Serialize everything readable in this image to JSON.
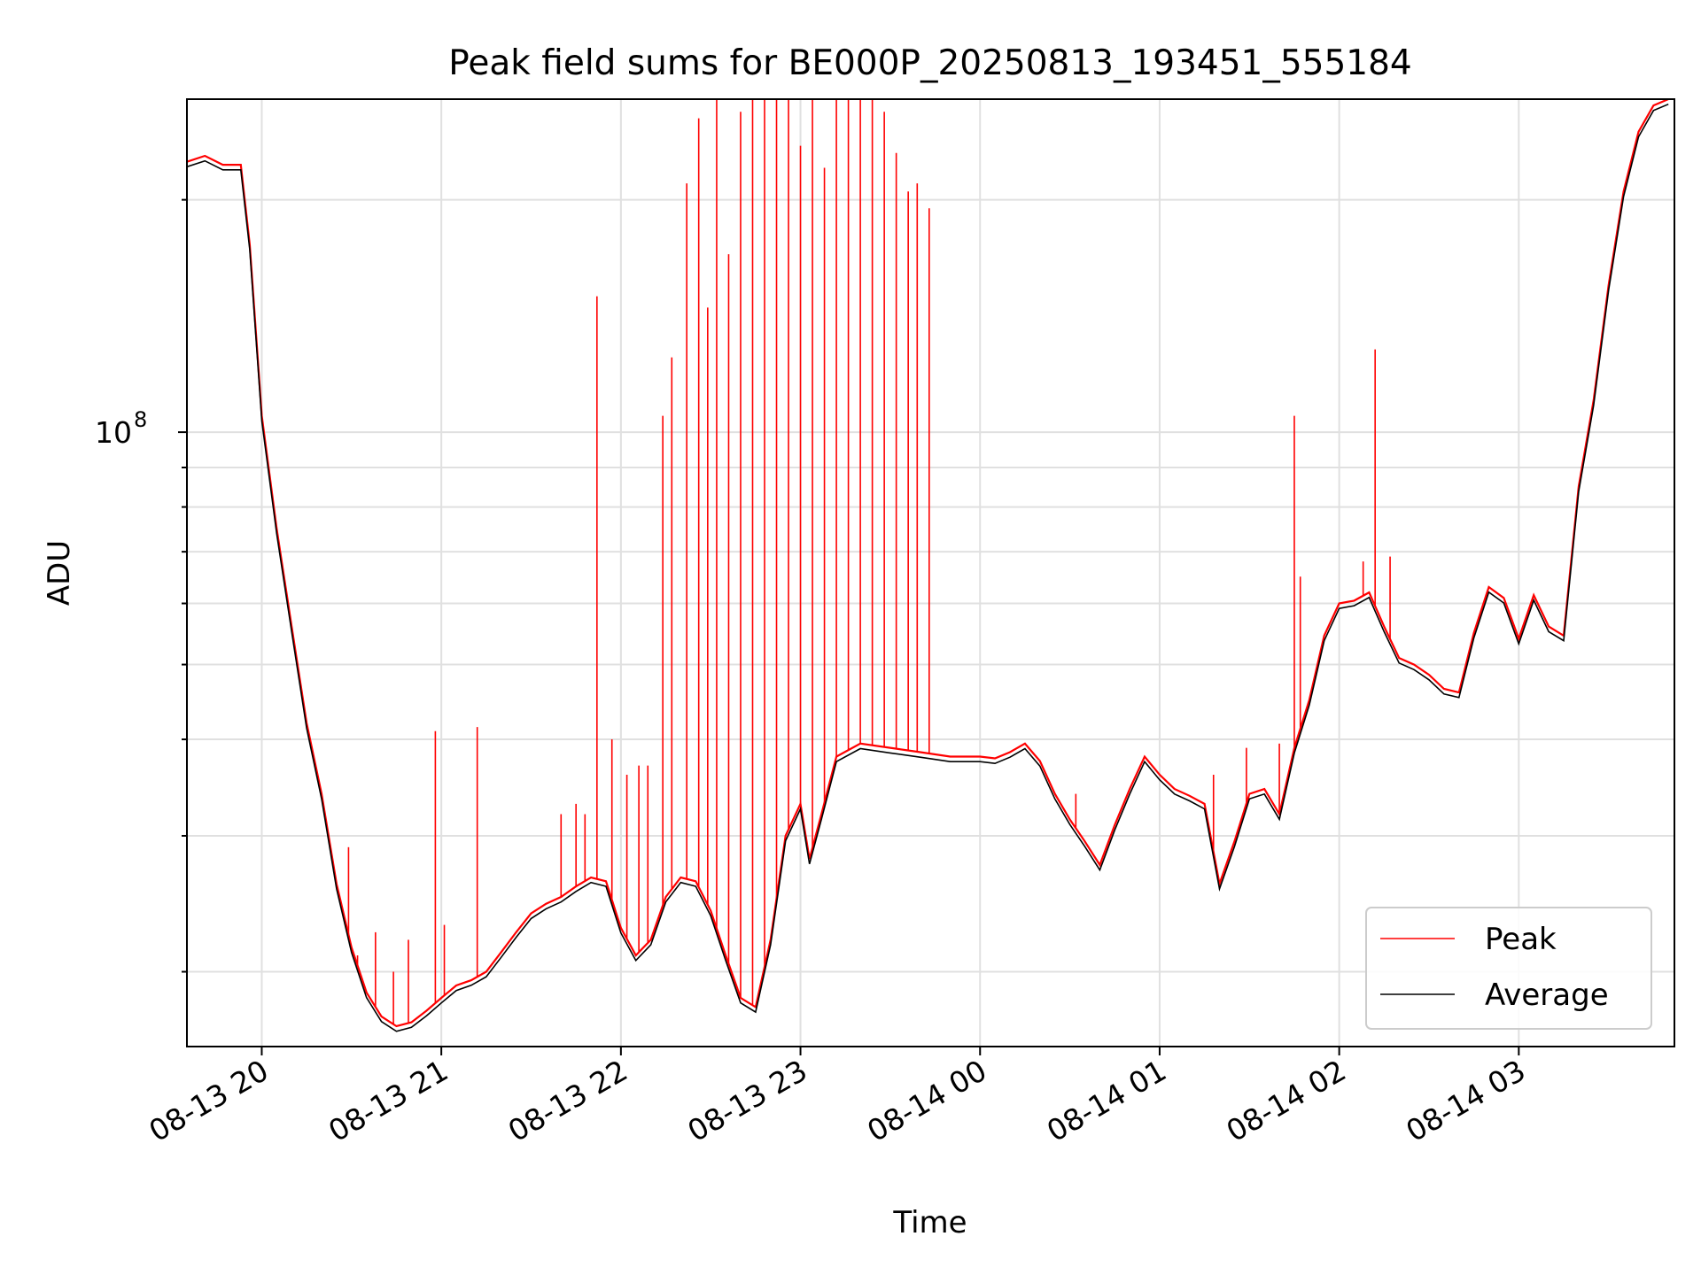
{
  "chart_data": {
    "type": "line",
    "title": "Peak field sums for BE000P_20250813_193451_555184",
    "xlabel": "Time",
    "ylabel": "ADU",
    "yscale": "log",
    "grid": true,
    "legend_placement": "lower-right",
    "x_tick_labels": [
      "08-13 20",
      "08-13 21",
      "08-13 22",
      "08-13 23",
      "08-14 00",
      "08-14 01",
      "08-14 02",
      "08-14 03"
    ],
    "x_ticks": [
      "2025-08-13 20:00",
      "2025-08-13 21:00",
      "2025-08-13 22:00",
      "2025-08-13 23:00",
      "2025-08-14 00:00",
      "2025-08-14 01:00",
      "2025-08-14 02:00",
      "2025-08-14 03:00"
    ],
    "xlim": [
      "2025-08-13 19:35",
      "2025-08-14 03:52"
    ],
    "y_tick_labels": [
      {
        "base": "10",
        "exp": "8",
        "value": 100000000
      }
    ],
    "y_minor_ticks": [
      20000000,
      30000000,
      40000000,
      50000000,
      60000000,
      70000000,
      80000000,
      90000000,
      200000000
    ],
    "ylim": [
      16000000,
      270000000
    ],
    "series": [
      {
        "name": "Peak",
        "color": "#ff0000",
        "points": [
          [
            "2025-08-13 19:35",
            224000000.0
          ],
          [
            "2025-08-13 19:41",
            228000000.0
          ],
          [
            "2025-08-13 19:47",
            222000000.0
          ],
          [
            "2025-08-13 19:53",
            222000000.0
          ],
          [
            "2025-08-13 19:56",
            175000000.0
          ],
          [
            "2025-08-13 20:00",
            105000000.0
          ],
          [
            "2025-08-13 20:05",
            75000000.0
          ],
          [
            "2025-08-13 20:10",
            56000000.0
          ],
          [
            "2025-08-13 20:15",
            42000000.0
          ],
          [
            "2025-08-13 20:20",
            34000000.0
          ],
          [
            "2025-08-13 20:25",
            26000000.0
          ],
          [
            "2025-08-13 20:30",
            21500000.0
          ],
          [
            "2025-08-13 20:35",
            18800000.0
          ],
          [
            "2025-08-13 20:40",
            17500000.0
          ],
          [
            "2025-08-13 20:45",
            17000000.0
          ],
          [
            "2025-08-13 20:50",
            17200000.0
          ],
          [
            "2025-08-13 20:55",
            17800000.0
          ],
          [
            "2025-08-13 21:00",
            18500000.0
          ],
          [
            "2025-08-13 21:05",
            19200000.0
          ],
          [
            "2025-08-13 21:10",
            19500000.0
          ],
          [
            "2025-08-13 21:15",
            20000000.0
          ],
          [
            "2025-08-13 21:20",
            21200000.0
          ],
          [
            "2025-08-13 21:25",
            22500000.0
          ],
          [
            "2025-08-13 21:30",
            23800000.0
          ],
          [
            "2025-08-13 21:35",
            24500000.0
          ],
          [
            "2025-08-13 21:40",
            25000000.0
          ],
          [
            "2025-08-13 21:45",
            25800000.0
          ],
          [
            "2025-08-13 21:50",
            26500000.0
          ],
          [
            "2025-08-13 21:55",
            26200000.0
          ],
          [
            "2025-08-13 22:00",
            22800000.0
          ],
          [
            "2025-08-13 22:05",
            21000000.0
          ],
          [
            "2025-08-13 22:10",
            22000000.0
          ],
          [
            "2025-08-13 22:15",
            25000000.0
          ],
          [
            "2025-08-13 22:20",
            26500000.0
          ],
          [
            "2025-08-13 22:25",
            26200000.0
          ],
          [
            "2025-08-13 22:30",
            24000000.0
          ],
          [
            "2025-08-13 22:35",
            21000000.0
          ],
          [
            "2025-08-13 22:40",
            18500000.0
          ],
          [
            "2025-08-13 22:45",
            18000000.0
          ],
          [
            "2025-08-13 22:50",
            22000000.0
          ],
          [
            "2025-08-13 22:55",
            30000000.0
          ],
          [
            "2025-08-13 23:00",
            33000000.0
          ],
          [
            "2025-08-13 23:03",
            28000000.0
          ],
          [
            "2025-08-13 23:07",
            32000000.0
          ],
          [
            "2025-08-13 23:12",
            38000000.0
          ],
          [
            "2025-08-13 23:20",
            39500000.0
          ],
          [
            "2025-08-13 23:30",
            39000000.0
          ],
          [
            "2025-08-13 23:40",
            38500000.0
          ],
          [
            "2025-08-13 23:50",
            38000000.0
          ],
          [
            "2025-08-14 00:00",
            38000000.0
          ],
          [
            "2025-08-14 00:05",
            37800000.0
          ],
          [
            "2025-08-14 00:10",
            38500000.0
          ],
          [
            "2025-08-14 00:15",
            39500000.0
          ],
          [
            "2025-08-14 00:20",
            37500000.0
          ],
          [
            "2025-08-14 00:25",
            34000000.0
          ],
          [
            "2025-08-14 00:30",
            31500000.0
          ],
          [
            "2025-08-14 00:35",
            29500000.0
          ],
          [
            "2025-08-14 00:40",
            27500000.0
          ],
          [
            "2025-08-14 00:45",
            31000000.0
          ],
          [
            "2025-08-14 00:50",
            34500000.0
          ],
          [
            "2025-08-14 00:55",
            38000000.0
          ],
          [
            "2025-08-14 01:00",
            36000000.0
          ],
          [
            "2025-08-14 01:05",
            34500000.0
          ],
          [
            "2025-08-14 01:10",
            33800000.0
          ],
          [
            "2025-08-14 01:15",
            33000000.0
          ],
          [
            "2025-08-14 01:20",
            26000000.0
          ],
          [
            "2025-08-14 01:25",
            29500000.0
          ],
          [
            "2025-08-14 01:30",
            34000000.0
          ],
          [
            "2025-08-14 01:35",
            34500000.0
          ],
          [
            "2025-08-14 01:40",
            32000000.0
          ],
          [
            "2025-08-14 01:45",
            39000000.0
          ],
          [
            "2025-08-14 01:50",
            45000000.0
          ],
          [
            "2025-08-14 01:55",
            54500000.0
          ],
          [
            "2025-08-14 02:00",
            60000000.0
          ],
          [
            "2025-08-14 02:05",
            60500000.0
          ],
          [
            "2025-08-14 02:10",
            62000000.0
          ],
          [
            "2025-08-14 02:15",
            56000000.0
          ],
          [
            "2025-08-14 02:20",
            51000000.0
          ],
          [
            "2025-08-14 02:25",
            50000000.0
          ],
          [
            "2025-08-14 02:30",
            48500000.0
          ],
          [
            "2025-08-14 02:35",
            46500000.0
          ],
          [
            "2025-08-14 02:40",
            46000000.0
          ],
          [
            "2025-08-14 02:45",
            55000000.0
          ],
          [
            "2025-08-14 02:50",
            63000000.0
          ],
          [
            "2025-08-14 02:55",
            61000000.0
          ],
          [
            "2025-08-14 03:00",
            54000000.0
          ],
          [
            "2025-08-14 03:05",
            61500000.0
          ],
          [
            "2025-08-14 03:10",
            56000000.0
          ],
          [
            "2025-08-14 03:15",
            54500000.0
          ],
          [
            "2025-08-14 03:20",
            85000000.0
          ],
          [
            "2025-08-14 03:25",
            110000000.0
          ],
          [
            "2025-08-14 03:30",
            155000000.0
          ],
          [
            "2025-08-14 03:35",
            205000000.0
          ],
          [
            "2025-08-14 03:40",
            245000000.0
          ],
          [
            "2025-08-14 03:45",
            265000000.0
          ],
          [
            "2025-08-14 03:50",
            270000000.0
          ]
        ],
        "spikes": [
          [
            "2025-08-13 20:29",
            29000000.0
          ],
          [
            "2025-08-13 20:32",
            21000000.0
          ],
          [
            "2025-08-13 20:38",
            22500000.0
          ],
          [
            "2025-08-13 20:44",
            20000000.0
          ],
          [
            "2025-08-13 20:49",
            22000000.0
          ],
          [
            "2025-08-13 20:58",
            41000000.0
          ],
          [
            "2025-08-13 21:01",
            23000000.0
          ],
          [
            "2025-08-13 21:12",
            41500000.0
          ],
          [
            "2025-08-13 21:40",
            32000000.0
          ],
          [
            "2025-08-13 21:45",
            33000000.0
          ],
          [
            "2025-08-13 21:48",
            32000000.0
          ],
          [
            "2025-08-13 21:52",
            150000000.0
          ],
          [
            "2025-08-13 21:57",
            40000000.0
          ],
          [
            "2025-08-13 22:02",
            36000000.0
          ],
          [
            "2025-08-13 22:06",
            37000000.0
          ],
          [
            "2025-08-13 22:09",
            37000000.0
          ],
          [
            "2025-08-13 22:14",
            105000000.0
          ],
          [
            "2025-08-13 22:17",
            125000000.0
          ],
          [
            "2025-08-13 22:22",
            210000000.0
          ],
          [
            "2025-08-13 22:26",
            255000000.0
          ],
          [
            "2025-08-13 22:29",
            145000000.0
          ],
          [
            "2025-08-13 22:32",
            270000000.0
          ],
          [
            "2025-08-13 22:36",
            170000000.0
          ],
          [
            "2025-08-13 22:40",
            260000000.0
          ],
          [
            "2025-08-13 22:44",
            270000000.0
          ],
          [
            "2025-08-13 22:48",
            270000000.0
          ],
          [
            "2025-08-13 22:52",
            270000000.0
          ],
          [
            "2025-08-13 22:56",
            270000000.0
          ],
          [
            "2025-08-13 23:00",
            235000000.0
          ],
          [
            "2025-08-13 23:04",
            270000000.0
          ],
          [
            "2025-08-13 23:08",
            220000000.0
          ],
          [
            "2025-08-13 23:12",
            270000000.0
          ],
          [
            "2025-08-13 23:16",
            270000000.0
          ],
          [
            "2025-08-13 23:20",
            270000000.0
          ],
          [
            "2025-08-13 23:24",
            270000000.0
          ],
          [
            "2025-08-13 23:28",
            260000000.0
          ],
          [
            "2025-08-13 23:32",
            230000000.0
          ],
          [
            "2025-08-13 23:36",
            205000000.0
          ],
          [
            "2025-08-13 23:39",
            210000000.0
          ],
          [
            "2025-08-13 23:43",
            195000000.0
          ],
          [
            "2025-08-14 00:32",
            34000000.0
          ],
          [
            "2025-08-14 01:18",
            36000000.0
          ],
          [
            "2025-08-14 01:29",
            39000000.0
          ],
          [
            "2025-08-14 01:40",
            39500000.0
          ],
          [
            "2025-08-14 01:45",
            105000000.0
          ],
          [
            "2025-08-14 01:47",
            65000000.0
          ],
          [
            "2025-08-14 02:08",
            68000000.0
          ],
          [
            "2025-08-14 02:12",
            128000000.0
          ],
          [
            "2025-08-14 02:17",
            69000000.0
          ]
        ]
      },
      {
        "name": "Average",
        "color": "#000000"
      }
    ]
  }
}
